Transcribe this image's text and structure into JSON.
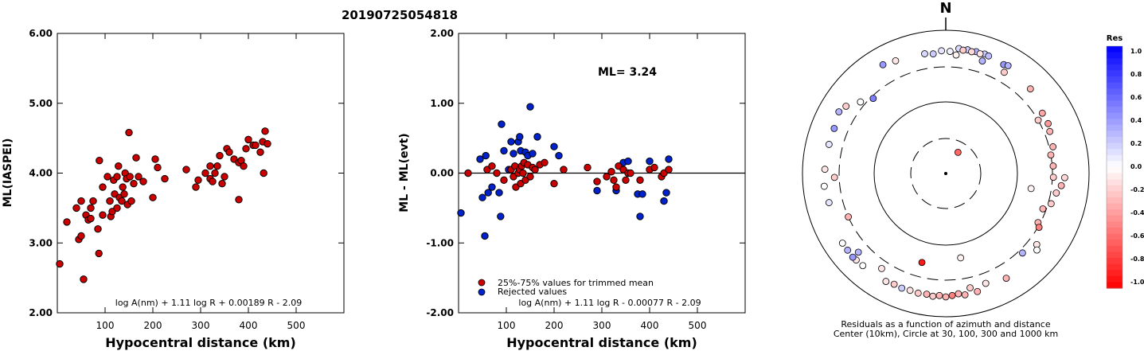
{
  "title": "20190725054818",
  "colors": {
    "accepted": "#cc0000",
    "rejected": "#0022cc",
    "axis": "#000000",
    "background": "#ffffff"
  },
  "chart_data": [
    {
      "type": "scatter",
      "ylabel": "ML(IASPEI)",
      "xlabel": "Hypocentral distance (km)",
      "xlim": [
        0,
        600
      ],
      "ylim": [
        2.0,
        6.0
      ],
      "x_ticks": [
        "100",
        "200",
        "300",
        "400",
        "500"
      ],
      "y_ticks": [
        "2.00",
        "3.00",
        "4.00",
        "5.00",
        "6.00"
      ],
      "formula": "log A(nm) + 1.11 log R + 0.00189 R - 2.09",
      "points": [
        [
          5,
          2.7
        ],
        [
          20,
          3.3
        ],
        [
          40,
          3.5
        ],
        [
          50,
          3.6
        ],
        [
          45,
          3.05
        ],
        [
          50,
          3.1
        ],
        [
          55,
          2.48
        ],
        [
          60,
          3.4
        ],
        [
          65,
          3.33
        ],
        [
          70,
          3.35
        ],
        [
          70,
          3.5
        ],
        [
          75,
          3.6
        ],
        [
          85,
          3.2
        ],
        [
          87,
          2.85
        ],
        [
          88,
          4.18
        ],
        [
          95,
          3.4
        ],
        [
          95,
          3.8
        ],
        [
          105,
          3.95
        ],
        [
          110,
          3.6
        ],
        [
          112,
          3.38
        ],
        [
          115,
          3.45
        ],
        [
          118,
          3.9
        ],
        [
          120,
          3.7
        ],
        [
          125,
          3.95
        ],
        [
          125,
          3.5
        ],
        [
          128,
          4.1
        ],
        [
          130,
          3.65
        ],
        [
          135,
          3.6
        ],
        [
          137,
          3.8
        ],
        [
          140,
          3.7
        ],
        [
          142,
          4.0
        ],
        [
          145,
          3.92
        ],
        [
          147,
          3.55
        ],
        [
          150,
          4.58
        ],
        [
          152,
          3.95
        ],
        [
          155,
          3.6
        ],
        [
          160,
          3.85
        ],
        [
          165,
          4.22
        ],
        [
          170,
          3.95
        ],
        [
          180,
          3.88
        ],
        [
          200,
          3.65
        ],
        [
          205,
          4.2
        ],
        [
          210,
          4.08
        ],
        [
          225,
          3.92
        ],
        [
          270,
          4.05
        ],
        [
          290,
          3.8
        ],
        [
          295,
          3.9
        ],
        [
          310,
          4.0
        ],
        [
          320,
          4.1
        ],
        [
          320,
          3.92
        ],
        [
          325,
          3.88
        ],
        [
          330,
          4.0
        ],
        [
          335,
          4.1
        ],
        [
          340,
          4.25
        ],
        [
          345,
          3.85
        ],
        [
          350,
          3.95
        ],
        [
          355,
          4.35
        ],
        [
          360,
          4.3
        ],
        [
          370,
          4.2
        ],
        [
          380,
          3.62
        ],
        [
          380,
          4.15
        ],
        [
          385,
          4.18
        ],
        [
          390,
          4.1
        ],
        [
          395,
          4.35
        ],
        [
          400,
          4.48
        ],
        [
          410,
          4.4
        ],
        [
          415,
          4.4
        ],
        [
          425,
          4.3
        ],
        [
          430,
          4.45
        ],
        [
          432,
          4.0
        ],
        [
          435,
          4.6
        ],
        [
          440,
          4.42
        ]
      ]
    },
    {
      "type": "scatter",
      "ylabel": "ML - ML(evt)",
      "xlabel": "Hypocentral distance (km)",
      "xlim": [
        0,
        600
      ],
      "ylim": [
        -2.0,
        2.0
      ],
      "x_ticks": [
        "100",
        "200",
        "300",
        "400",
        "500"
      ],
      "y_ticks": [
        "-2.00",
        "-1.00",
        "0.00",
        "1.00",
        "2.00"
      ],
      "ml_label": "ML= 3.24",
      "formula": "log A(nm) + 1.11 log R - 0.00077 R - 2.09",
      "legend": [
        "25%-75% values for trimmed mean",
        "Rejected values"
      ],
      "accepted": [
        [
          20,
          0.0
        ],
        [
          60,
          0.05
        ],
        [
          70,
          0.1
        ],
        [
          80,
          0.0
        ],
        [
          95,
          -0.1
        ],
        [
          110,
          0.05
        ],
        [
          115,
          -0.05
        ],
        [
          118,
          0.1
        ],
        [
          120,
          -0.2
        ],
        [
          125,
          0.0
        ],
        [
          128,
          0.05
        ],
        [
          130,
          -0.15
        ],
        [
          132,
          0.1
        ],
        [
          135,
          0.0
        ],
        [
          137,
          0.15
        ],
        [
          140,
          -0.1
        ],
        [
          145,
          0.12
        ],
        [
          150,
          -0.05
        ],
        [
          155,
          0.08
        ],
        [
          160,
          0.05
        ],
        [
          170,
          0.12
        ],
        [
          180,
          0.15
        ],
        [
          200,
          -0.15
        ],
        [
          220,
          0.05
        ],
        [
          270,
          0.08
        ],
        [
          290,
          -0.12
        ],
        [
          310,
          -0.05
        ],
        [
          320,
          0.02
        ],
        [
          325,
          -0.1
        ],
        [
          330,
          -0.2
        ],
        [
          335,
          0.1
        ],
        [
          345,
          0.05
        ],
        [
          350,
          -0.1
        ],
        [
          355,
          0.0
        ],
        [
          360,
          0.0
        ],
        [
          380,
          -0.1
        ],
        [
          400,
          0.05
        ],
        [
          410,
          0.08
        ],
        [
          425,
          -0.05
        ],
        [
          430,
          0.0
        ],
        [
          440,
          0.05
        ]
      ],
      "rejected": [
        [
          5,
          -0.57
        ],
        [
          45,
          0.2
        ],
        [
          50,
          -0.35
        ],
        [
          55,
          -0.9
        ],
        [
          57,
          0.25
        ],
        [
          62,
          -0.28
        ],
        [
          70,
          -0.2
        ],
        [
          85,
          -0.28
        ],
        [
          88,
          -0.62
        ],
        [
          90,
          0.7
        ],
        [
          95,
          0.32
        ],
        [
          105,
          0.05
        ],
        [
          110,
          0.45
        ],
        [
          115,
          0.28
        ],
        [
          125,
          0.45
        ],
        [
          128,
          0.52
        ],
        [
          130,
          0.32
        ],
        [
          140,
          0.3
        ],
        [
          145,
          0.25
        ],
        [
          150,
          0.95
        ],
        [
          155,
          0.28
        ],
        [
          165,
          0.52
        ],
        [
          200,
          0.38
        ],
        [
          210,
          0.25
        ],
        [
          290,
          -0.25
        ],
        [
          330,
          -0.25
        ],
        [
          345,
          0.15
        ],
        [
          355,
          0.17
        ],
        [
          375,
          -0.3
        ],
        [
          380,
          -0.62
        ],
        [
          385,
          -0.3
        ],
        [
          400,
          0.17
        ],
        [
          430,
          -0.4
        ],
        [
          435,
          -0.28
        ],
        [
          440,
          0.2
        ]
      ]
    },
    {
      "type": "scatter",
      "north_label": "N",
      "colorbar_title": "Res",
      "colorbar_ticks": [
        "1.0",
        "0.8",
        "0.6",
        "0.4",
        "0.2",
        "0.0",
        "-0.2",
        "-0.4",
        "-0.6",
        "-0.8",
        "-1.0"
      ],
      "caption_line1": "Residuals as a function of azimuth and distance",
      "caption_line2": "Center (10km), Circle at 30, 100, 300 and 1000 km",
      "stations": [
        [
          0,
          0,
          0.0
        ],
        [
          30,
          20,
          -0.6
        ],
        [
          228,
          430,
          0.3
        ],
        [
          246,
          300,
          -0.3
        ],
        [
          195,
          190,
          -0.9
        ],
        [
          170,
          155,
          -0.05
        ],
        [
          6,
          560,
          0.15
        ],
        [
          10,
          560,
          0.2
        ],
        [
          14,
          560,
          0.3
        ],
        [
          18,
          560,
          0.2
        ],
        [
          8,
          540,
          -0.2
        ],
        [
          12,
          540,
          -0.15
        ],
        [
          16,
          540,
          -0.1
        ],
        [
          20,
          550,
          0.25
        ],
        [
          5,
          450,
          -0.05
        ],
        [
          30,
          420,
          -0.2
        ],
        [
          28,
          520,
          0.4
        ],
        [
          30,
          540,
          0.3
        ],
        [
          45,
          460,
          -0.3
        ],
        [
          58,
          380,
          -0.35
        ],
        [
          64,
          380,
          -0.4
        ],
        [
          60,
          300,
          -0.2
        ],
        [
          68,
          360,
          -0.3
        ],
        [
          76,
          340,
          -0.3
        ],
        [
          80,
          300,
          -0.3
        ],
        [
          86,
          310,
          -0.3
        ],
        [
          92,
          310,
          -0.2
        ],
        [
          92,
          450,
          -0.15
        ],
        [
          96,
          410,
          -0.3
        ],
        [
          100,
          360,
          -0.2
        ],
        [
          106,
          330,
          -0.2
        ],
        [
          110,
          270,
          -0.3
        ],
        [
          118,
          280,
          -0.3
        ],
        [
          120,
          310,
          -0.5
        ],
        [
          128,
          400,
          -0.1
        ],
        [
          136,
          340,
          0.3
        ],
        [
          130,
          450,
          0.0
        ],
        [
          150,
          480,
          -0.3
        ],
        [
          160,
          420,
          -0.1
        ],
        [
          165,
          500,
          -0.3
        ],
        [
          168,
          420,
          -0.2
        ],
        [
          171,
          510,
          -0.3
        ],
        [
          174,
          480,
          -0.3
        ],
        [
          177,
          500,
          -0.5
        ],
        [
          180,
          520,
          -0.3
        ],
        [
          183,
          500,
          -0.3
        ],
        [
          186,
          520,
          -0.2
        ],
        [
          189,
          500,
          -0.3
        ],
        [
          193,
          510,
          -0.2
        ],
        [
          197,
          500,
          -0.1
        ],
        [
          201,
          510,
          0.2
        ],
        [
          205,
          500,
          -0.2
        ],
        [
          209,
          520,
          -0.1
        ],
        [
          214,
          390,
          -0.1
        ],
        [
          222,
          530,
          0.0
        ],
        [
          226,
          540,
          -0.1
        ],
        [
          228,
          550,
          0.4
        ],
        [
          232,
          540,
          0.3
        ],
        [
          236,
          540,
          0.0
        ],
        [
          256,
          470,
          0.1
        ],
        [
          264,
          500,
          0.0
        ],
        [
          268,
          350,
          -0.2
        ],
        [
          272,
          480,
          -0.1
        ],
        [
          284,
          470,
          0.1
        ],
        [
          292,
          470,
          0.4
        ],
        [
          300,
          520,
          0.3
        ],
        [
          304,
          470,
          -0.2
        ],
        [
          310,
          350,
          0.0
        ],
        [
          316,
          280,
          0.5
        ],
        [
          330,
          560,
          0.4
        ],
        [
          336,
          520,
          -0.1
        ],
        [
          350,
          490,
          0.15
        ],
        [
          354,
          470,
          0.2
        ],
        [
          358,
          510,
          0.1
        ],
        [
          2,
          500,
          0.05
        ],
        [
          100,
          160,
          -0.05
        ],
        [
          18,
          440,
          0.3
        ]
      ]
    }
  ]
}
